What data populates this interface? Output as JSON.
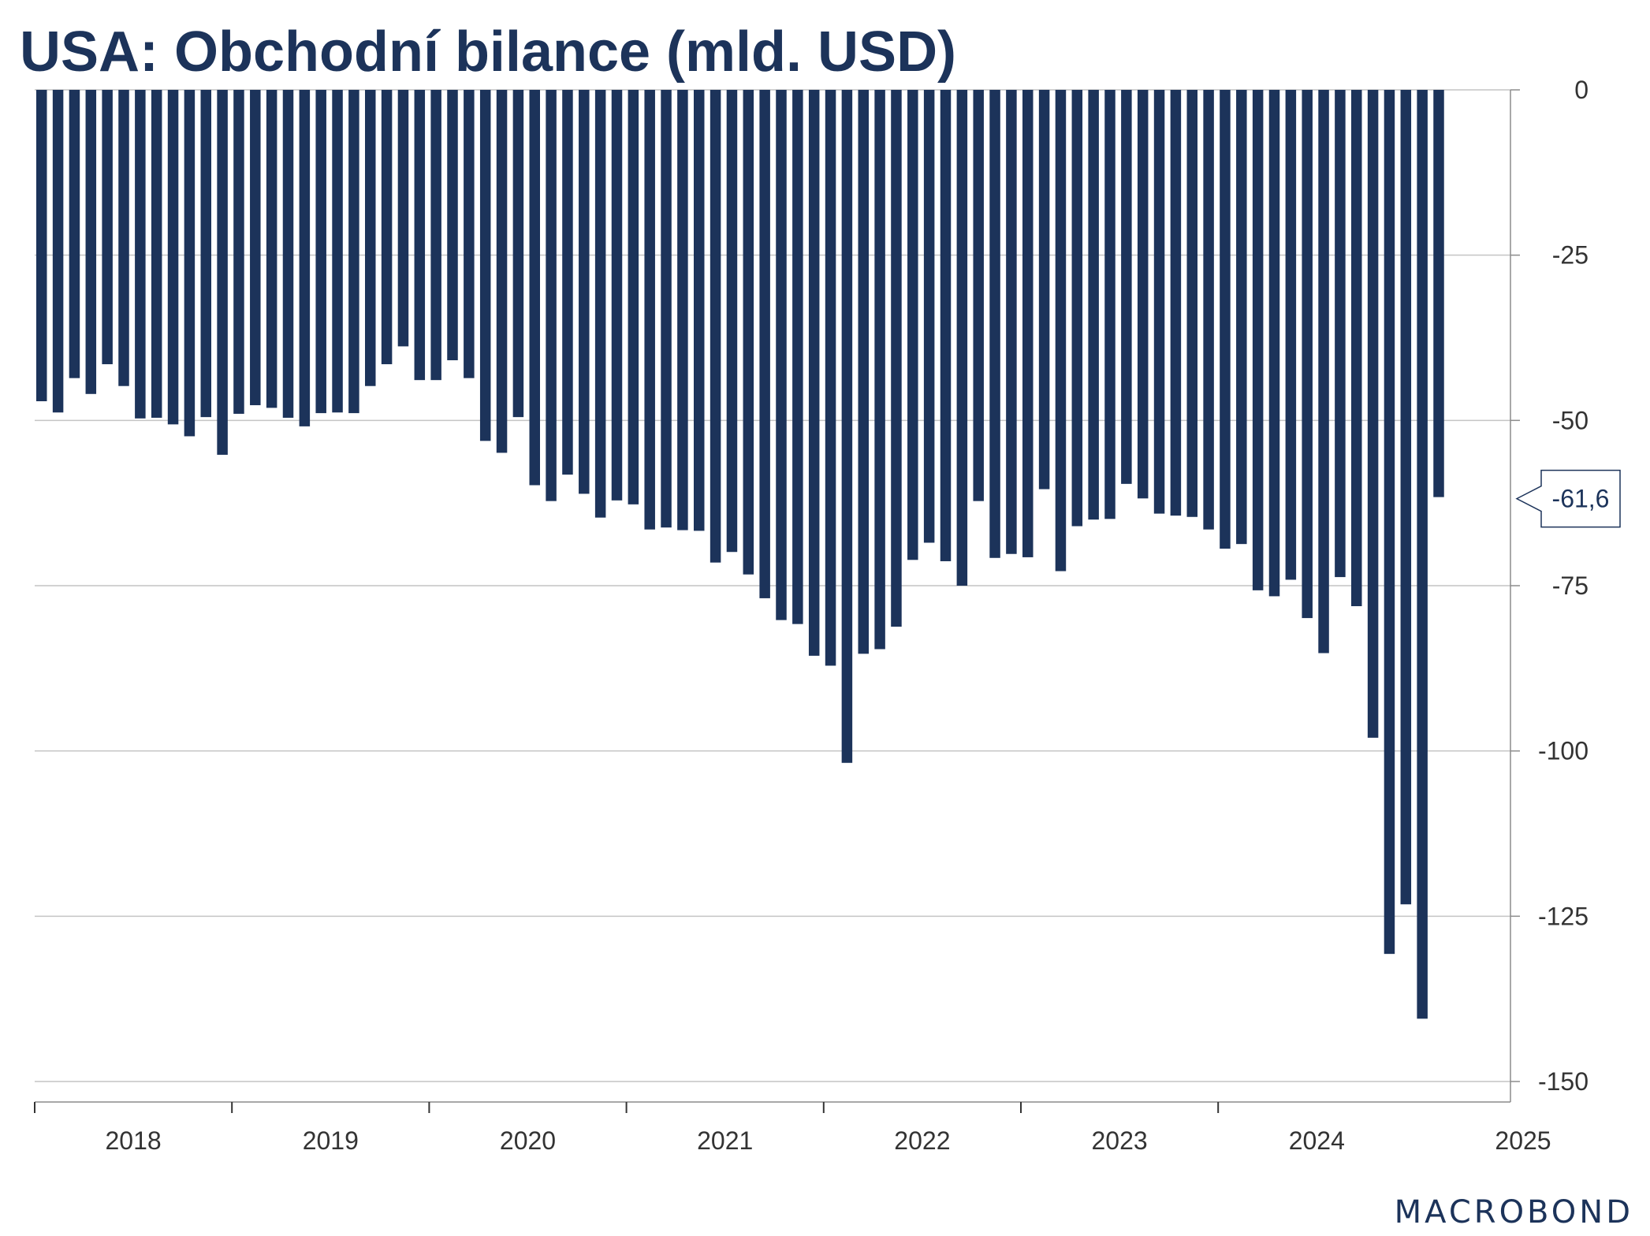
{
  "chart_data": {
    "type": "bar",
    "title": "USA: Obchodní bilance (mld. USD)",
    "xlabel": "",
    "ylabel": "",
    "ylim": [
      -150,
      0
    ],
    "y_ticks": [
      "0",
      "-25",
      "-50",
      "-75",
      "-100",
      "-125",
      "-150"
    ],
    "y_tick_values": [
      0,
      -25,
      -50,
      -75,
      -100,
      -125,
      -150
    ],
    "x_tick_labels": [
      "2018",
      "2019",
      "2020",
      "2021",
      "2022",
      "2023",
      "2024",
      "2025"
    ],
    "y_axis_position": "right",
    "grid": true,
    "bar_color": "#1c335a",
    "last_value_label": "-61,6",
    "series": [
      {
        "values": [
          -47.1,
          -48.8,
          -43.6,
          -46.0,
          -41.5,
          -44.8,
          -49.7,
          -49.6,
          -50.6,
          -52.4,
          -49.5,
          -55.2,
          -49.0,
          -47.7,
          -48.1,
          -49.6,
          -50.9,
          -48.9,
          -48.8,
          -48.9,
          -44.8,
          -41.5,
          -38.8,
          -43.9,
          -43.9,
          -40.9,
          -43.6,
          -53.1,
          -54.9,
          -49.5,
          -59.8,
          -62.2,
          -58.2,
          -61.1,
          -64.7,
          -62.1,
          -62.7,
          -66.5,
          -66.2,
          -66.6,
          -66.7,
          -71.5,
          -69.9,
          -73.3,
          -76.9,
          -80.2,
          -80.8,
          -85.6,
          -87.1,
          -101.8,
          -85.3,
          -84.6,
          -81.2,
          -71.1,
          -68.5,
          -71.3,
          -75.0,
          -62.2,
          -70.8,
          -70.2,
          -70.7,
          -60.4,
          -72.8,
          -66.0,
          -65.0,
          -64.9,
          -59.6,
          -61.8,
          -64.1,
          -64.4,
          -64.6,
          -66.5,
          -69.4,
          -68.7,
          -75.7,
          -76.6,
          -74.1,
          -79.9,
          -85.2,
          -73.7,
          -78.1,
          -98.0,
          -130.7,
          -123.2,
          -140.5,
          -61.6
        ]
      }
    ]
  },
  "logo": {
    "text": "MACROBOND"
  }
}
